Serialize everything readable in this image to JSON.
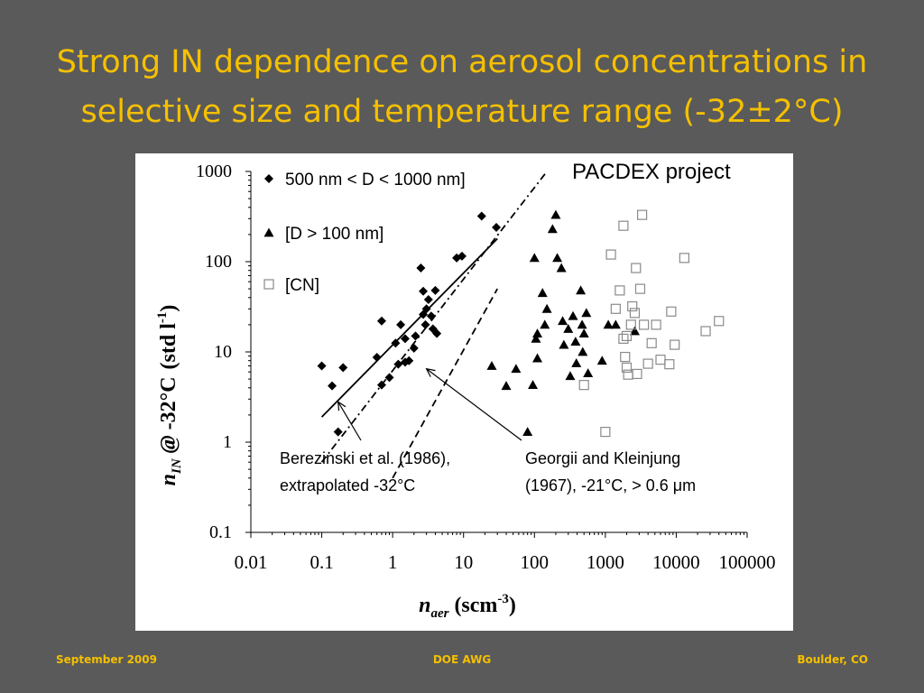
{
  "slide": {
    "title_line1": "Strong IN dependence on aerosol concentrations in",
    "title_line2": "selective size and temperature range (-32±2°C)"
  },
  "footer": {
    "left": "September 2009",
    "center": "DOE AWG",
    "right": "Boulder, CO"
  },
  "colors": {
    "background": "#5a5a5a",
    "title": "#f5c000",
    "footer": "#f5c000",
    "plot": "#000000",
    "open_square": "#8a8a8a"
  },
  "chart_data": {
    "type": "scatter",
    "x_scale": "log",
    "y_scale": "log",
    "xlim": [
      0.01,
      100000
    ],
    "ylim": [
      0.1,
      1000
    ],
    "grid": false,
    "legend_placement": "top-left",
    "project_label": "PACDEX project",
    "xlabel": {
      "var": "n",
      "sub": "aer",
      "unit_pre": "(scm",
      "unit_sup": "-3",
      "unit_post": ")"
    },
    "ylabel": {
      "var": "n",
      "sub": "IN",
      "at": "@",
      "temp": "-32°C",
      "unit_pre": "(std l",
      "unit_sup": "-1",
      "unit_post": ")"
    },
    "x_ticks": [
      "0.01",
      "0.1",
      "1",
      "10",
      "100",
      "1000",
      "10000",
      "100000"
    ],
    "y_ticks": [
      "0.1",
      "1",
      "10",
      "100",
      "1000"
    ],
    "series": [
      {
        "name": "500 nm < D < 1000 nm]",
        "marker": "diamond",
        "points": [
          [
            0.1,
            7
          ],
          [
            0.14,
            4.2
          ],
          [
            0.17,
            1.3
          ],
          [
            0.2,
            6.7
          ],
          [
            0.6,
            8.7
          ],
          [
            0.7,
            22
          ],
          [
            0.7,
            4.3
          ],
          [
            0.9,
            5.2
          ],
          [
            1.1,
            12.5
          ],
          [
            1.2,
            7.3
          ],
          [
            1.3,
            20
          ],
          [
            1.5,
            14
          ],
          [
            1.5,
            7.7
          ],
          [
            1.7,
            8
          ],
          [
            2,
            11
          ],
          [
            2.1,
            15
          ],
          [
            2.5,
            85
          ],
          [
            2.7,
            47
          ],
          [
            2.7,
            26
          ],
          [
            2.9,
            20
          ],
          [
            3,
            30
          ],
          [
            3.2,
            38
          ],
          [
            3.5,
            25
          ],
          [
            3.7,
            18
          ],
          [
            4,
            48
          ],
          [
            4.2,
            16
          ],
          [
            8,
            110
          ],
          [
            9.5,
            115
          ],
          [
            18,
            320
          ],
          [
            29,
            240
          ]
        ]
      },
      {
        "name": "[D > 100 nm]",
        "marker": "triangle",
        "points": [
          [
            25,
            7
          ],
          [
            40,
            4.2
          ],
          [
            55,
            6.5
          ],
          [
            80,
            1.3
          ],
          [
            95,
            4.3
          ],
          [
            100,
            110
          ],
          [
            105,
            14
          ],
          [
            110,
            16
          ],
          [
            110,
            8.5
          ],
          [
            130,
            45
          ],
          [
            140,
            20
          ],
          [
            150,
            30
          ],
          [
            180,
            230
          ],
          [
            200,
            330
          ],
          [
            210,
            110
          ],
          [
            240,
            85
          ],
          [
            250,
            22
          ],
          [
            260,
            12
          ],
          [
            300,
            18
          ],
          [
            320,
            5.4
          ],
          [
            350,
            25
          ],
          [
            380,
            13
          ],
          [
            390,
            7.5
          ],
          [
            450,
            48
          ],
          [
            470,
            20
          ],
          [
            480,
            10
          ],
          [
            500,
            16
          ],
          [
            540,
            27
          ],
          [
            570,
            5.8
          ],
          [
            900,
            8
          ],
          [
            1100,
            20
          ],
          [
            1400,
            20
          ],
          [
            2600,
            17
          ]
        ]
      },
      {
        "name": "[CN]",
        "marker": "square",
        "points": [
          [
            500,
            4.3
          ],
          [
            1000,
            1.3
          ],
          [
            1200,
            120
          ],
          [
            1400,
            30
          ],
          [
            1600,
            48
          ],
          [
            1800,
            250
          ],
          [
            1800,
            14
          ],
          [
            1900,
            8.8
          ],
          [
            2000,
            15
          ],
          [
            2000,
            6.7
          ],
          [
            2100,
            5.6
          ],
          [
            2300,
            20
          ],
          [
            2400,
            32
          ],
          [
            2600,
            27
          ],
          [
            2700,
            85
          ],
          [
            2800,
            5.7
          ],
          [
            3100,
            50
          ],
          [
            3300,
            330
          ],
          [
            3500,
            20
          ],
          [
            4000,
            7.4
          ],
          [
            4500,
            12.5
          ],
          [
            5200,
            20
          ],
          [
            6000,
            8.2
          ],
          [
            8000,
            7.3
          ],
          [
            8500,
            28
          ],
          [
            9500,
            12
          ],
          [
            13000,
            110
          ],
          [
            26000,
            17
          ],
          [
            40000,
            22
          ]
        ]
      }
    ],
    "fit_lines": [
      {
        "style": "solid",
        "x": [
          0.1,
          30
        ],
        "y": [
          1.9,
          180
        ]
      },
      {
        "style": "dashdot",
        "x": [
          0.1,
          150
        ],
        "y": [
          0.6,
          1000
        ]
      },
      {
        "style": "dashed",
        "x": [
          1,
          30
        ],
        "y": [
          0.4,
          50
        ]
      }
    ],
    "annotations": [
      {
        "lines": [
          "Berezinski et al. (1986),",
          "extrapolated -32°C"
        ],
        "arrow_to": [
          0.17,
          2.8
        ]
      },
      {
        "lines": [
          "Georgii and Kleinjung",
          "(1967), -21°C, > 0.6 μm"
        ],
        "arrow_to": [
          3,
          6.5
        ]
      }
    ]
  }
}
